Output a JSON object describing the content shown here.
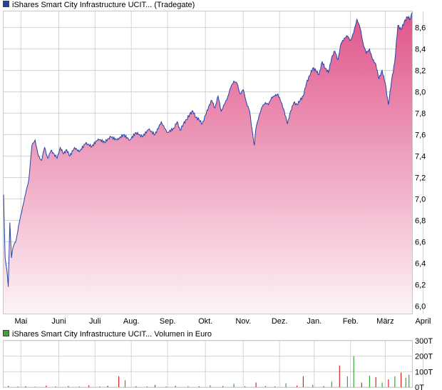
{
  "chart_data": [
    {
      "type": "area",
      "legend": "iShares Smart City Infrastructure UCIT... (Tradegate)",
      "colors": {
        "line": "#2244aa",
        "fill_top": "#e0558a",
        "fill_bottom": "#fdf3f7",
        "legend_square": "#2244aa",
        "grid": "#d4d4d4"
      },
      "grid": true,
      "x_tick_labels": [
        "Mai",
        "Juni",
        "Juli",
        "Aug.",
        "Sep.",
        "Okt.",
        "Nov.",
        "Dez.",
        "Jan.",
        "Feb.",
        "März",
        "April"
      ],
      "x_tick_index": [
        11,
        35,
        58,
        81,
        104,
        128,
        152,
        175,
        197,
        220,
        242,
        266
      ],
      "y_ticks": [
        {
          "v": 6.0,
          "label": "6,0"
        },
        {
          "v": 6.2,
          "label": "6,2"
        },
        {
          "v": 6.4,
          "label": "6,4"
        },
        {
          "v": 6.6,
          "label": "6,6"
        },
        {
          "v": 6.8,
          "label": "6,8"
        },
        {
          "v": 7.0,
          "label": "7,0"
        },
        {
          "v": 7.2,
          "label": "7,2"
        },
        {
          "v": 7.4,
          "label": "7,4"
        },
        {
          "v": 7.6,
          "label": "7,6"
        },
        {
          "v": 7.8,
          "label": "7,8"
        },
        {
          "v": 8.0,
          "label": "8,0"
        },
        {
          "v": 8.2,
          "label": "8,2"
        },
        {
          "v": 8.4,
          "label": "8,4"
        },
        {
          "v": 8.6,
          "label": "8,6"
        }
      ],
      "ylim": [
        5.93,
        8.75
      ],
      "anchors": [
        [
          0,
          7.04
        ],
        [
          1,
          6.45
        ],
        [
          2,
          6.35
        ],
        [
          3,
          6.18
        ],
        [
          4,
          6.78
        ],
        [
          5,
          6.45
        ],
        [
          6,
          6.55
        ],
        [
          8,
          6.62
        ],
        [
          10,
          6.78
        ],
        [
          12,
          6.92
        ],
        [
          14,
          7.05
        ],
        [
          16,
          7.18
        ],
        [
          18,
          7.5
        ],
        [
          20,
          7.55
        ],
        [
          22,
          7.4
        ],
        [
          24,
          7.36
        ],
        [
          26,
          7.48
        ],
        [
          28,
          7.38
        ],
        [
          30,
          7.45
        ],
        [
          32,
          7.42
        ],
        [
          34,
          7.38
        ],
        [
          36,
          7.48
        ],
        [
          38,
          7.42
        ],
        [
          40,
          7.46
        ],
        [
          42,
          7.4
        ],
        [
          45,
          7.48
        ],
        [
          48,
          7.44
        ],
        [
          52,
          7.52
        ],
        [
          56,
          7.49
        ],
        [
          60,
          7.56
        ],
        [
          64,
          7.53
        ],
        [
          68,
          7.58
        ],
        [
          72,
          7.55
        ],
        [
          76,
          7.6
        ],
        [
          80,
          7.55
        ],
        [
          84,
          7.62
        ],
        [
          88,
          7.58
        ],
        [
          92,
          7.65
        ],
        [
          96,
          7.6
        ],
        [
          100,
          7.72
        ],
        [
          102,
          7.66
        ],
        [
          104,
          7.62
        ],
        [
          108,
          7.66
        ],
        [
          110,
          7.72
        ],
        [
          112,
          7.64
        ],
        [
          114,
          7.7
        ],
        [
          116,
          7.74
        ],
        [
          118,
          7.79
        ],
        [
          120,
          7.82
        ],
        [
          122,
          7.76
        ],
        [
          124,
          7.74
        ],
        [
          126,
          7.7
        ],
        [
          128,
          7.78
        ],
        [
          130,
          7.86
        ],
        [
          132,
          7.92
        ],
        [
          134,
          7.85
        ],
        [
          136,
          7.96
        ],
        [
          138,
          7.82
        ],
        [
          140,
          7.88
        ],
        [
          142,
          7.95
        ],
        [
          144,
          8.04
        ],
        [
          146,
          8.1
        ],
        [
          148,
          8.08
        ],
        [
          150,
          7.98
        ],
        [
          152,
          8.02
        ],
        [
          154,
          7.9
        ],
        [
          156,
          7.82
        ],
        [
          158,
          7.6
        ],
        [
          159,
          7.5
        ],
        [
          160,
          7.66
        ],
        [
          162,
          7.78
        ],
        [
          164,
          7.86
        ],
        [
          166,
          7.9
        ],
        [
          168,
          7.88
        ],
        [
          170,
          7.95
        ],
        [
          172,
          7.96
        ],
        [
          174,
          7.98
        ],
        [
          176,
          7.9
        ],
        [
          178,
          7.82
        ],
        [
          180,
          7.7
        ],
        [
          182,
          7.82
        ],
        [
          184,
          7.9
        ],
        [
          186,
          7.88
        ],
        [
          188,
          7.92
        ],
        [
          190,
          7.96
        ],
        [
          192,
          8.08
        ],
        [
          194,
          8.15
        ],
        [
          196,
          8.22
        ],
        [
          198,
          8.2
        ],
        [
          200,
          8.16
        ],
        [
          202,
          8.28
        ],
        [
          204,
          8.22
        ],
        [
          206,
          8.18
        ],
        [
          208,
          8.32
        ],
        [
          210,
          8.38
        ],
        [
          212,
          8.3
        ],
        [
          214,
          8.45
        ],
        [
          216,
          8.5
        ],
        [
          218,
          8.52
        ],
        [
          220,
          8.48
        ],
        [
          222,
          8.55
        ],
        [
          224,
          8.68
        ],
        [
          226,
          8.6
        ],
        [
          228,
          8.45
        ],
        [
          230,
          8.36
        ],
        [
          232,
          8.4
        ],
        [
          234,
          8.3
        ],
        [
          236,
          8.26
        ],
        [
          238,
          8.12
        ],
        [
          240,
          8.2
        ],
        [
          242,
          8.08
        ],
        [
          244,
          7.88
        ],
        [
          246,
          8.1
        ],
        [
          248,
          8.28
        ],
        [
          250,
          8.62
        ],
        [
          252,
          8.58
        ],
        [
          254,
          8.65
        ],
        [
          256,
          8.7
        ],
        [
          258,
          8.68
        ],
        [
          259,
          8.74
        ]
      ]
    },
    {
      "type": "bar",
      "legend": "iShares Smart City Infrastructure UCIT... Volumen in Euro",
      "colors": {
        "up": "#33aa33",
        "down": "#dd2222",
        "legend_square": "#33aa33",
        "grid": "#d4d4d4"
      },
      "grid": true,
      "y_ticks": [
        {
          "v": 0,
          "label": "0T"
        },
        {
          "v": 100,
          "label": "100T"
        },
        {
          "v": 200,
          "label": "200T"
        },
        {
          "v": 300,
          "label": "300T"
        }
      ],
      "ylim": [
        0,
        300
      ],
      "bars_thousand_euro": [
        [
          3,
          8,
          "down"
        ],
        [
          9,
          4,
          "up"
        ],
        [
          14,
          6,
          "down"
        ],
        [
          20,
          3,
          "up"
        ],
        [
          27,
          10,
          "down"
        ],
        [
          33,
          5,
          "up"
        ],
        [
          41,
          7,
          "down"
        ],
        [
          48,
          4,
          "up"
        ],
        [
          54,
          12,
          "down"
        ],
        [
          61,
          5,
          "up"
        ],
        [
          66,
          9,
          "down"
        ],
        [
          73,
          70,
          "down"
        ],
        [
          77,
          45,
          "up"
        ],
        [
          84,
          6,
          "down"
        ],
        [
          91,
          5,
          "up"
        ],
        [
          96,
          14,
          "down"
        ],
        [
          103,
          4,
          "up"
        ],
        [
          109,
          8,
          "down"
        ],
        [
          117,
          6,
          "up"
        ],
        [
          124,
          5,
          "down"
        ],
        [
          131,
          12,
          "up"
        ],
        [
          139,
          7,
          "down"
        ],
        [
          146,
          22,
          "up"
        ],
        [
          153,
          6,
          "down"
        ],
        [
          160,
          30,
          "down"
        ],
        [
          166,
          8,
          "up"
        ],
        [
          172,
          5,
          "down"
        ],
        [
          179,
          25,
          "up"
        ],
        [
          186,
          10,
          "down"
        ],
        [
          190,
          70,
          "down"
        ],
        [
          196,
          15,
          "up"
        ],
        [
          203,
          6,
          "down"
        ],
        [
          208,
          35,
          "up"
        ],
        [
          213,
          140,
          "down"
        ],
        [
          218,
          70,
          "up"
        ],
        [
          222,
          200,
          "up"
        ],
        [
          227,
          30,
          "down"
        ],
        [
          232,
          75,
          "up"
        ],
        [
          236,
          65,
          "down"
        ],
        [
          240,
          30,
          "up"
        ],
        [
          244,
          50,
          "down"
        ],
        [
          248,
          70,
          "up"
        ],
        [
          252,
          95,
          "down"
        ],
        [
          255,
          60,
          "up"
        ],
        [
          257,
          80,
          "up"
        ]
      ]
    }
  ]
}
